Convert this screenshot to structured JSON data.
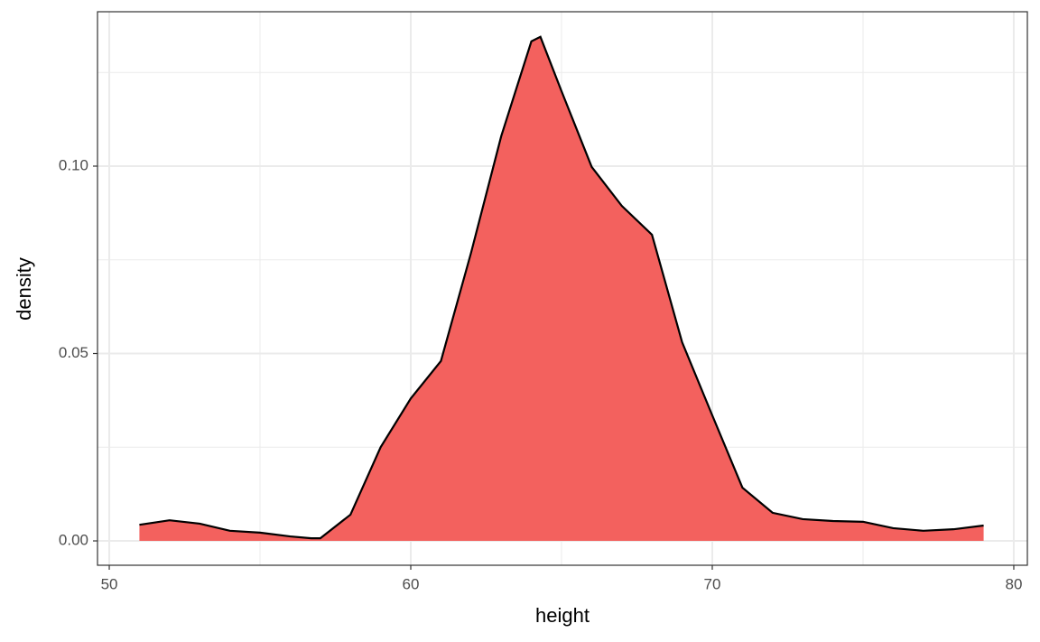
{
  "chart_data": {
    "type": "area",
    "x_label": "height",
    "y_label": "density",
    "x": [
      51,
      52,
      53,
      54,
      55,
      56,
      56.7,
      57,
      58,
      59,
      60,
      61,
      62,
      63,
      64,
      64.3,
      65,
      66,
      67,
      68,
      69,
      70,
      71,
      72,
      73,
      74,
      75,
      76,
      77,
      78,
      79
    ],
    "series": [
      {
        "color": "#f3615e",
        "values": [
          0.0043,
          0.0055,
          0.0046,
          0.0027,
          0.0022,
          0.0012,
          0.0007,
          0.0007,
          0.007,
          0.025,
          0.038,
          0.048,
          0.0769,
          0.108,
          0.1333,
          0.1345,
          0.12,
          0.0998,
          0.0894,
          0.0817,
          0.053,
          0.0335,
          0.0142,
          0.0075,
          0.0058,
          0.0053,
          0.0051,
          0.0034,
          0.0027,
          0.0031,
          0.0041
        ]
      }
    ],
    "xlim": [
      49.61,
      80.45
    ],
    "ylim": [
      -0.0065,
      0.1412
    ],
    "xticks": [
      50,
      60,
      70,
      80
    ],
    "yticks": [
      {
        "value": 0,
        "label": "0.00"
      },
      {
        "value": 0.05,
        "label": "0.05"
      },
      {
        "value": 0.1,
        "label": "0.10"
      }
    ],
    "x_minor_grid": [
      55,
      65,
      75
    ],
    "y_minor_grid": [
      0.025,
      0.075,
      0.125
    ],
    "grid": true,
    "line_color": "#000000"
  }
}
